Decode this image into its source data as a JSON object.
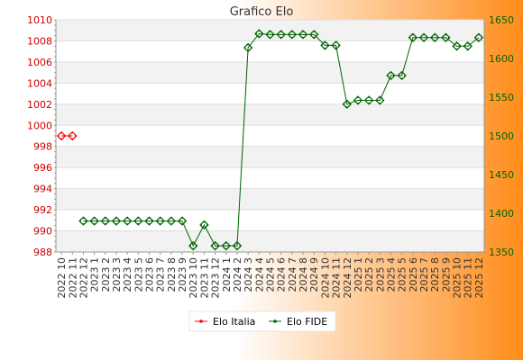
{
  "chart_data": {
    "type": "line",
    "title": "Grafico Elo",
    "categories": [
      "2022 10",
      "2022 11",
      "2022 12",
      "2023 1",
      "2023 2",
      "2023 3",
      "2023 4",
      "2023 5",
      "2023 6",
      "2023 7",
      "2023 8",
      "2023 9",
      "2023 10",
      "2023 11",
      "2023 12",
      "2024 1",
      "2024 2",
      "2024 3",
      "2024 4",
      "2024 5",
      "2024 6",
      "2024 7",
      "2024 8",
      "2024 9",
      "2024 10",
      "2024 11",
      "2024 12",
      "2025 1",
      "2025 2",
      "2025 3",
      "2025 4",
      "2025 5",
      "2025 6",
      "2025 7",
      "2025 8",
      "2025 9",
      "2025 10",
      "2025 11",
      "2025 12"
    ],
    "series": [
      {
        "name": "Elo Italia",
        "axis": "left",
        "color": "#ff0000",
        "values": [
          999,
          999,
          null,
          null,
          null,
          null,
          null,
          null,
          null,
          null,
          null,
          null,
          null,
          null,
          null,
          null,
          null,
          null,
          null,
          null,
          null,
          null,
          null,
          null,
          null,
          null,
          null,
          null,
          null,
          null,
          null,
          null,
          null,
          null,
          null,
          null,
          null,
          null,
          null
        ]
      },
      {
        "name": "Elo FIDE",
        "axis": "right",
        "color": "#006400",
        "values": [
          null,
          null,
          1390,
          1390,
          1390,
          1390,
          1390,
          1390,
          1390,
          1390,
          1390,
          1390,
          1358,
          1385,
          1358,
          1358,
          1358,
          1614,
          1632,
          1631,
          1631,
          1631,
          1631,
          1631,
          1617,
          1617,
          1541,
          1546,
          1546,
          1546,
          1578,
          1578,
          1627,
          1627,
          1627,
          1627,
          1616,
          1616,
          1627
        ]
      }
    ],
    "y_left": {
      "range": [
        988,
        1010
      ],
      "ticks": [
        "988",
        "990",
        "992",
        "994",
        "996",
        "998",
        "1000",
        "1002",
        "1004",
        "1006",
        "1008",
        "1010"
      ],
      "color": "#cc0000"
    },
    "y_right": {
      "range": [
        1350,
        1650
      ],
      "ticks": [
        "1350",
        "1400",
        "1450",
        "1500",
        "1550",
        "1600",
        "1650"
      ],
      "color": "#006400"
    },
    "grid": true,
    "legend": {
      "position": "bottom",
      "entries": [
        "Elo Italia",
        "Elo FIDE"
      ]
    }
  }
}
